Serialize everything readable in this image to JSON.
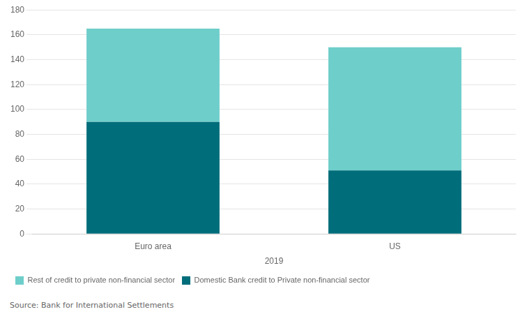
{
  "chart_data": {
    "type": "bar",
    "stacked": true,
    "categories": [
      "Euro area",
      "US"
    ],
    "series": [
      {
        "name": "Domestic Bank credit to Private non-financial sector",
        "color": "#006d7a",
        "values": [
          90,
          51
        ]
      },
      {
        "name": "Rest of credit to private non-financial sector",
        "color": "#6ececa",
        "values": [
          75,
          99
        ]
      }
    ],
    "xlabel": "2019",
    "ylim": [
      0,
      180
    ],
    "yticks": [
      0,
      20,
      40,
      60,
      80,
      100,
      120,
      140,
      160,
      180
    ],
    "grid": true,
    "legend": "bottom",
    "annotations": [
      "Source: Bank for International Settlements"
    ]
  }
}
